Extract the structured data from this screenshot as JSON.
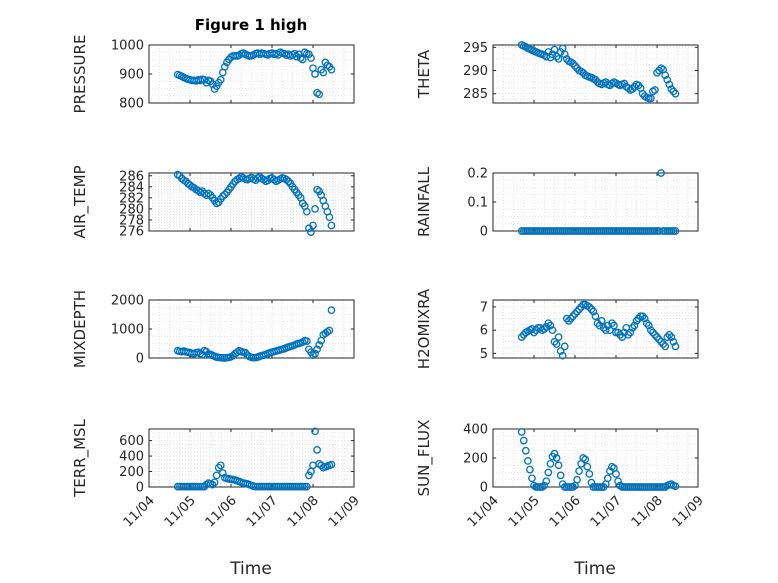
{
  "figure": {
    "title": "Figure 1 high",
    "xlabel": "Time",
    "date_ticks": [
      "11/04",
      "11/05",
      "11/06",
      "11/07",
      "11/08",
      "11/09"
    ]
  },
  "colors": {
    "marker": "#0072BD",
    "axes": "#262626",
    "grid": "#dcdcdc"
  },
  "chart_data": [
    {
      "type": "scatter",
      "id": "pressure",
      "ylabel": "PRESSURE",
      "xlim": [
        "11/04",
        "11/09"
      ],
      "ylim": [
        800,
        1000
      ],
      "yticks": [
        800,
        900,
        1000
      ],
      "grid": true,
      "x": [
        4.7,
        4.75,
        4.8,
        4.85,
        4.9,
        4.95,
        5.0,
        5.05,
        5.1,
        5.15,
        5.2,
        5.25,
        5.3,
        5.35,
        5.4,
        5.45,
        5.5,
        5.55,
        5.6,
        5.65,
        5.7,
        5.75,
        5.8,
        5.85,
        5.9,
        5.95,
        6.0,
        6.05,
        6.1,
        6.15,
        6.2,
        6.25,
        6.3,
        6.35,
        6.4,
        6.45,
        6.5,
        6.55,
        6.6,
        6.65,
        6.7,
        6.75,
        6.8,
        6.85,
        6.9,
        6.95,
        7.0,
        7.05,
        7.1,
        7.15,
        7.2,
        7.25,
        7.3,
        7.35,
        7.4,
        7.45,
        7.5,
        7.55,
        7.6,
        7.65,
        7.7,
        7.75,
        7.8,
        7.85,
        7.9,
        7.95,
        8.0,
        8.05,
        8.1,
        8.15,
        8.2,
        8.25,
        8.3,
        8.35,
        8.4,
        8.45
      ],
      "y": [
        898,
        895,
        892,
        888,
        885,
        882,
        880,
        878,
        878,
        876,
        880,
        878,
        882,
        880,
        870,
        878,
        875,
        865,
        848,
        858,
        870,
        880,
        905,
        925,
        940,
        950,
        958,
        962,
        963,
        962,
        965,
        970,
        972,
        968,
        965,
        962,
        963,
        966,
        970,
        972,
        968,
        972,
        970,
        968,
        966,
        970,
        972,
        968,
        970,
        966,
        975,
        972,
        970,
        965,
        968,
        962,
        966,
        970,
        960,
        968,
        955,
        950,
        975,
        970,
        968,
        955,
        920,
        900,
        835,
        830,
        915,
        905,
        940,
        930,
        925,
        915
      ]
    },
    {
      "type": "scatter",
      "id": "theta",
      "ylabel": "THETA",
      "xlim": [
        "11/04",
        "11/09"
      ],
      "ylim": [
        283,
        295.5
      ],
      "yticks": [
        285,
        290,
        295
      ],
      "grid": true,
      "x": [
        4.7,
        4.75,
        4.8,
        4.85,
        4.9,
        4.95,
        5.0,
        5.05,
        5.1,
        5.15,
        5.2,
        5.25,
        5.3,
        5.35,
        5.4,
        5.45,
        5.5,
        5.55,
        5.6,
        5.65,
        5.7,
        5.75,
        5.8,
        5.85,
        5.9,
        5.95,
        6.0,
        6.05,
        6.1,
        6.15,
        6.2,
        6.25,
        6.3,
        6.35,
        6.4,
        6.45,
        6.5,
        6.55,
        6.6,
        6.65,
        6.7,
        6.75,
        6.8,
        6.85,
        6.9,
        6.95,
        7.0,
        7.05,
        7.1,
        7.15,
        7.2,
        7.25,
        7.3,
        7.35,
        7.4,
        7.45,
        7.5,
        7.55,
        7.6,
        7.65,
        7.7,
        7.75,
        7.8,
        7.85,
        7.9,
        7.95,
        8.0,
        8.05,
        8.1,
        8.15,
        8.2,
        8.25,
        8.3,
        8.35,
        8.4,
        8.45
      ],
      "y": [
        295.5,
        295.3,
        295.1,
        294.8,
        294.6,
        294.4,
        294.2,
        294.0,
        293.8,
        293.6,
        293.5,
        293.3,
        293.0,
        294.0,
        292.8,
        293.5,
        294.5,
        293.0,
        292.5,
        294.0,
        294.8,
        293.5,
        292.5,
        292.0,
        291.8,
        291.5,
        291.0,
        290.5,
        290.0,
        289.8,
        289.5,
        289.0,
        288.8,
        288.6,
        288.5,
        288.2,
        288.0,
        287.5,
        287.2,
        287.0,
        287.3,
        287.5,
        287.0,
        286.8,
        287.2,
        287.5,
        287.3,
        287.0,
        286.8,
        287.0,
        287.2,
        286.5,
        286.2,
        285.8,
        286.0,
        286.5,
        287.0,
        286.8,
        286.2,
        285.0,
        284.5,
        284.2,
        284.0,
        284.0,
        285.5,
        285.8,
        289.5,
        290.0,
        290.5,
        290.2,
        289.0,
        288.0,
        287.0,
        286.0,
        285.5,
        285.0
      ]
    },
    {
      "type": "scatter",
      "id": "air-temp",
      "ylabel": "AIR_TEMP",
      "xlim": [
        "11/04",
        "11/09"
      ],
      "ylim": [
        276,
        286.5
      ],
      "yticks": [
        276,
        278,
        280,
        282,
        284,
        286
      ],
      "grid": true,
      "x": [
        4.7,
        4.75,
        4.8,
        4.85,
        4.9,
        4.95,
        5.0,
        5.05,
        5.1,
        5.15,
        5.2,
        5.25,
        5.3,
        5.35,
        5.4,
        5.45,
        5.5,
        5.55,
        5.6,
        5.65,
        5.7,
        5.75,
        5.8,
        5.85,
        5.9,
        5.95,
        6.0,
        6.05,
        6.1,
        6.15,
        6.2,
        6.25,
        6.3,
        6.35,
        6.4,
        6.45,
        6.5,
        6.55,
        6.6,
        6.65,
        6.7,
        6.75,
        6.8,
        6.85,
        6.9,
        6.95,
        7.0,
        7.05,
        7.1,
        7.15,
        7.2,
        7.25,
        7.3,
        7.35,
        7.4,
        7.45,
        7.5,
        7.55,
        7.6,
        7.65,
        7.7,
        7.75,
        7.8,
        7.85,
        7.9,
        7.95,
        8.0,
        8.05,
        8.1,
        8.15,
        8.2,
        8.25,
        8.3,
        8.35,
        8.4,
        8.45
      ],
      "y": [
        286.2,
        286.0,
        285.5,
        285.2,
        285.0,
        284.6,
        284.3,
        284.0,
        283.8,
        283.5,
        283.3,
        283.0,
        283.2,
        282.8,
        282.5,
        282.8,
        282.5,
        282.0,
        281.5,
        281.0,
        281.2,
        281.8,
        282.3,
        282.6,
        283.0,
        283.5,
        284.0,
        284.5,
        285.0,
        285.3,
        285.5,
        285.8,
        285.6,
        285.4,
        285.3,
        285.5,
        285.7,
        285.4,
        285.2,
        285.6,
        285.8,
        285.5,
        285.3,
        285.0,
        285.2,
        285.5,
        285.6,
        285.3,
        285.0,
        285.2,
        285.4,
        285.6,
        285.5,
        285.3,
        285.0,
        284.6,
        284.0,
        283.5,
        283.0,
        282.5,
        282.0,
        281.0,
        280.5,
        279.5,
        276.5,
        275.8,
        277.0,
        280.0,
        283.5,
        283.2,
        282.5,
        281.5,
        280.5,
        279.5,
        278.5,
        277.0
      ]
    },
    {
      "type": "scatter",
      "id": "rainfall",
      "ylabel": "RAINFALL",
      "xlim": [
        "11/04",
        "11/09"
      ],
      "ylim": [
        0,
        0.2
      ],
      "yticks": [
        0,
        0.1,
        0.2
      ],
      "grid": true,
      "x": [
        4.7,
        4.75,
        4.8,
        4.85,
        4.9,
        4.95,
        5.0,
        5.05,
        5.1,
        5.15,
        5.2,
        5.25,
        5.3,
        5.35,
        5.4,
        5.45,
        5.5,
        5.55,
        5.6,
        5.65,
        5.7,
        5.75,
        5.8,
        5.85,
        5.9,
        5.95,
        6.0,
        6.05,
        6.1,
        6.15,
        6.2,
        6.25,
        6.3,
        6.35,
        6.4,
        6.45,
        6.5,
        6.55,
        6.6,
        6.65,
        6.7,
        6.75,
        6.8,
        6.85,
        6.9,
        6.95,
        7.0,
        7.05,
        7.1,
        7.15,
        7.2,
        7.25,
        7.3,
        7.35,
        7.4,
        7.45,
        7.5,
        7.55,
        7.6,
        7.65,
        7.7,
        7.75,
        7.8,
        7.85,
        7.9,
        7.95,
        8.0,
        8.05,
        8.1,
        8.15,
        8.2,
        8.25,
        8.3,
        8.35,
        8.4,
        8.45
      ],
      "y": [
        0,
        0,
        0,
        0,
        0,
        0,
        0,
        0,
        0,
        0,
        0,
        0,
        0,
        0,
        0,
        0,
        0,
        0,
        0,
        0,
        0,
        0,
        0,
        0,
        0,
        0,
        0,
        0,
        0,
        0,
        0,
        0,
        0,
        0,
        0,
        0,
        0,
        0,
        0,
        0,
        0,
        0,
        0,
        0,
        0,
        0,
        0,
        0,
        0,
        0,
        0,
        0,
        0,
        0,
        0,
        0,
        0,
        0,
        0,
        0,
        0,
        0,
        0,
        0,
        0,
        0,
        0,
        0,
        0.2,
        0,
        0,
        0,
        0,
        0,
        0,
        0
      ]
    },
    {
      "type": "scatter",
      "id": "mixdepth",
      "ylabel": "MIXDEPTH",
      "xlim": [
        "11/04",
        "11/09"
      ],
      "ylim": [
        0,
        2000
      ],
      "yticks": [
        0,
        1000,
        2000
      ],
      "grid": true,
      "x": [
        4.7,
        4.75,
        4.8,
        4.85,
        4.9,
        4.95,
        5.0,
        5.05,
        5.1,
        5.15,
        5.2,
        5.25,
        5.3,
        5.35,
        5.4,
        5.45,
        5.5,
        5.55,
        5.6,
        5.65,
        5.7,
        5.75,
        5.8,
        5.85,
        5.9,
        5.95,
        6.0,
        6.05,
        6.1,
        6.15,
        6.2,
        6.25,
        6.3,
        6.35,
        6.4,
        6.45,
        6.5,
        6.55,
        6.6,
        6.65,
        6.7,
        6.75,
        6.8,
        6.85,
        6.9,
        6.95,
        7.0,
        7.05,
        7.1,
        7.15,
        7.2,
        7.25,
        7.3,
        7.35,
        7.4,
        7.45,
        7.5,
        7.55,
        7.6,
        7.65,
        7.7,
        7.75,
        7.8,
        7.85,
        7.9,
        7.95,
        8.0,
        8.05,
        8.1,
        8.15,
        8.2,
        8.25,
        8.3,
        8.35,
        8.4,
        8.45
      ],
      "y": [
        250,
        230,
        220,
        240,
        210,
        200,
        180,
        160,
        150,
        180,
        200,
        150,
        120,
        250,
        220,
        130,
        120,
        90,
        60,
        30,
        20,
        10,
        5,
        0,
        10,
        20,
        40,
        80,
        150,
        200,
        250,
        220,
        200,
        180,
        100,
        50,
        20,
        10,
        15,
        30,
        60,
        80,
        100,
        120,
        150,
        180,
        200,
        220,
        240,
        260,
        280,
        300,
        320,
        350,
        380,
        400,
        420,
        450,
        480,
        500,
        520,
        550,
        600,
        580,
        300,
        200,
        100,
        150,
        300,
        450,
        600,
        800,
        850,
        900,
        950,
        1650
      ]
    },
    {
      "type": "scatter",
      "id": "h2omixra",
      "ylabel": "H2OMIXRA",
      "xlim": [
        "11/04",
        "11/09"
      ],
      "ylim": [
        4.8,
        7.3
      ],
      "yticks": [
        5,
        6,
        7
      ],
      "grid": true,
      "x": [
        4.7,
        4.75,
        4.8,
        4.85,
        4.9,
        4.95,
        5.0,
        5.05,
        5.1,
        5.15,
        5.2,
        5.25,
        5.3,
        5.35,
        5.4,
        5.45,
        5.5,
        5.55,
        5.6,
        5.65,
        5.7,
        5.75,
        5.8,
        5.85,
        5.9,
        5.95,
        6.0,
        6.05,
        6.1,
        6.15,
        6.2,
        6.25,
        6.3,
        6.35,
        6.4,
        6.45,
        6.5,
        6.55,
        6.6,
        6.65,
        6.7,
        6.75,
        6.8,
        6.85,
        6.9,
        6.95,
        7.0,
        7.05,
        7.1,
        7.15,
        7.2,
        7.25,
        7.3,
        7.35,
        7.4,
        7.45,
        7.5,
        7.55,
        7.6,
        7.65,
        7.7,
        7.75,
        7.8,
        7.85,
        7.9,
        7.95,
        8.0,
        8.05,
        8.1,
        8.15,
        8.2,
        8.25,
        8.3,
        8.35,
        8.4,
        8.45
      ],
      "y": [
        5.7,
        5.8,
        5.9,
        5.95,
        6.0,
        6.05,
        5.9,
        6.0,
        6.1,
        6.1,
        6.0,
        6.05,
        6.15,
        6.3,
        6.2,
        6.0,
        5.5,
        5.4,
        5.7,
        5.1,
        4.9,
        5.3,
        6.5,
        6.4,
        6.5,
        6.6,
        6.7,
        6.8,
        6.9,
        7.0,
        7.1,
        7.1,
        7.05,
        7.0,
        6.9,
        6.8,
        6.6,
        6.3,
        6.2,
        6.4,
        6.1,
        6.0,
        6.2,
        6.0,
        6.3,
        6.2,
        5.9,
        5.9,
        5.8,
        5.7,
        5.9,
        6.1,
        5.8,
        5.9,
        6.1,
        6.2,
        6.4,
        6.5,
        6.6,
        6.6,
        6.5,
        6.3,
        6.2,
        6.0,
        5.9,
        5.8,
        5.7,
        5.6,
        5.5,
        5.4,
        5.3,
        5.7,
        5.8,
        5.7,
        5.5,
        5.3
      ]
    },
    {
      "type": "scatter",
      "id": "terr-msl",
      "ylabel": "TERR_MSL",
      "xlim": [
        "11/04",
        "11/09"
      ],
      "ylim": [
        0,
        750
      ],
      "yticks": [
        0,
        200,
        400,
        600
      ],
      "grid": true,
      "x": [
        4.7,
        4.75,
        4.8,
        4.85,
        4.9,
        4.95,
        5.0,
        5.05,
        5.1,
        5.15,
        5.2,
        5.25,
        5.3,
        5.35,
        5.4,
        5.45,
        5.5,
        5.55,
        5.6,
        5.65,
        5.7,
        5.75,
        5.8,
        5.85,
        5.9,
        5.95,
        6.0,
        6.05,
        6.1,
        6.15,
        6.2,
        6.25,
        6.3,
        6.35,
        6.4,
        6.45,
        6.5,
        6.55,
        6.6,
        6.65,
        6.7,
        6.75,
        6.8,
        6.85,
        6.9,
        6.95,
        7.0,
        7.05,
        7.1,
        7.15,
        7.2,
        7.25,
        7.3,
        7.35,
        7.4,
        7.45,
        7.5,
        7.55,
        7.6,
        7.65,
        7.7,
        7.75,
        7.8,
        7.85,
        7.9,
        7.95,
        8.0,
        8.05,
        8.1,
        8.15,
        8.2,
        8.25,
        8.3,
        8.35,
        8.4,
        8.45
      ],
      "y": [
        5,
        5,
        5,
        5,
        5,
        5,
        5,
        5,
        5,
        5,
        5,
        5,
        5,
        5,
        30,
        50,
        40,
        30,
        60,
        150,
        250,
        280,
        180,
        120,
        110,
        105,
        100,
        95,
        90,
        80,
        70,
        60,
        50,
        45,
        40,
        30,
        20,
        10,
        5,
        5,
        5,
        5,
        5,
        5,
        5,
        5,
        5,
        5,
        5,
        5,
        5,
        5,
        5,
        5,
        5,
        5,
        5,
        5,
        5,
        5,
        5,
        5,
        5,
        5,
        150,
        200,
        280,
        720,
        480,
        300,
        280,
        250,
        260,
        270,
        280,
        290
      ]
    },
    {
      "type": "scatter",
      "id": "sun-flux",
      "ylabel": "SUN_FLUX",
      "xlim": [
        "11/04",
        "11/09"
      ],
      "ylim": [
        0,
        400
      ],
      "yticks": [
        0,
        200,
        400
      ],
      "grid": true,
      "x": [
        4.7,
        4.75,
        4.8,
        4.85,
        4.9,
        4.95,
        5.0,
        5.05,
        5.1,
        5.15,
        5.2,
        5.25,
        5.3,
        5.35,
        5.4,
        5.45,
        5.5,
        5.55,
        5.6,
        5.65,
        5.7,
        5.75,
        5.8,
        5.85,
        5.9,
        5.95,
        6.0,
        6.05,
        6.1,
        6.15,
        6.2,
        6.25,
        6.3,
        6.35,
        6.4,
        6.45,
        6.5,
        6.55,
        6.6,
        6.65,
        6.7,
        6.75,
        6.8,
        6.85,
        6.9,
        6.95,
        7.0,
        7.05,
        7.1,
        7.15,
        7.2,
        7.25,
        7.3,
        7.35,
        7.4,
        7.45,
        7.5,
        7.55,
        7.6,
        7.65,
        7.7,
        7.75,
        7.8,
        7.85,
        7.9,
        7.95,
        8.0,
        8.05,
        8.1,
        8.15,
        8.2,
        8.25,
        8.3,
        8.35,
        8.4,
        8.45
      ],
      "y": [
        380,
        320,
        250,
        180,
        120,
        60,
        10,
        0,
        0,
        0,
        0,
        10,
        40,
        100,
        160,
        210,
        230,
        200,
        150,
        80,
        20,
        0,
        0,
        0,
        0,
        0,
        10,
        50,
        110,
        160,
        200,
        190,
        140,
        90,
        30,
        0,
        0,
        0,
        0,
        0,
        0,
        20,
        60,
        110,
        140,
        130,
        90,
        40,
        10,
        0,
        0,
        0,
        0,
        0,
        0,
        0,
        0,
        0,
        0,
        0,
        0,
        0,
        0,
        0,
        0,
        0,
        0,
        0,
        0,
        0,
        0,
        10,
        15,
        20,
        10,
        5
      ]
    }
  ]
}
